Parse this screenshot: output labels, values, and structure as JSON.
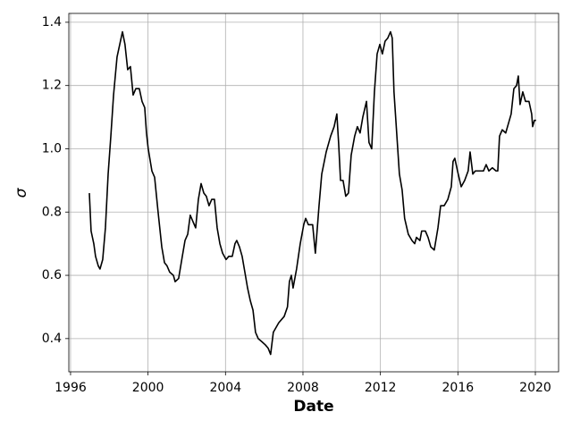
{
  "chart_data": {
    "type": "line",
    "x_label": "Date",
    "y_label": "σ",
    "color": "#000000",
    "grid": true,
    "x": [
      1996.97,
      1997.06,
      1997.2,
      1997.29,
      1997.43,
      1997.52,
      1997.66,
      1997.8,
      1997.94,
      1998.08,
      1998.22,
      1998.4,
      1998.54,
      1998.68,
      1998.81,
      1998.95,
      1999.09,
      1999.23,
      1999.37,
      1999.55,
      1999.69,
      1999.83,
      1999.92,
      2000.01,
      2000.2,
      2000.34,
      2000.52,
      2000.71,
      2000.85,
      2000.98,
      2001.12,
      2001.31,
      2001.4,
      2001.58,
      2001.77,
      2001.91,
      2002.05,
      2002.18,
      2002.32,
      2002.46,
      2002.6,
      2002.74,
      2002.88,
      2003.01,
      2003.15,
      2003.29,
      2003.43,
      2003.57,
      2003.71,
      2003.85,
      2004.03,
      2004.17,
      2004.35,
      2004.49,
      2004.58,
      2004.72,
      2004.86,
      2005.0,
      2005.14,
      2005.28,
      2005.42,
      2005.55,
      2005.69,
      2005.88,
      2006.06,
      2006.2,
      2006.33,
      2006.47,
      2006.75,
      2007.03,
      2007.2,
      2007.3,
      2007.4,
      2007.49,
      2007.67,
      2007.86,
      2008.04,
      2008.14,
      2008.28,
      2008.5,
      2008.64,
      2008.83,
      2008.97,
      2009.2,
      2009.43,
      2009.61,
      2009.75,
      2009.84,
      2009.94,
      2010.07,
      2010.21,
      2010.35,
      2010.49,
      2010.67,
      2010.81,
      2010.95,
      2011.09,
      2011.28,
      2011.41,
      2011.55,
      2011.69,
      2011.83,
      2011.97,
      2012.1,
      2012.24,
      2012.38,
      2012.52,
      2012.61,
      2012.7,
      2012.84,
      2012.98,
      2013.12,
      2013.25,
      2013.44,
      2013.63,
      2013.77,
      2013.86,
      2014.04,
      2014.13,
      2014.32,
      2014.46,
      2014.6,
      2014.78,
      2014.97,
      2015.11,
      2015.29,
      2015.48,
      2015.66,
      2015.75,
      2015.84,
      2015.98,
      2016.17,
      2016.35,
      2016.53,
      2016.63,
      2016.77,
      2016.9,
      2017.14,
      2017.32,
      2017.46,
      2017.6,
      2017.78,
      2017.97,
      2018.06,
      2018.15,
      2018.29,
      2018.47,
      2018.61,
      2018.75,
      2018.89,
      2019.03,
      2019.12,
      2019.21,
      2019.35,
      2019.49,
      2019.67,
      2019.81,
      2019.86,
      2019.95,
      2020.04
    ],
    "values": [
      0.86,
      0.74,
      0.7,
      0.66,
      0.63,
      0.62,
      0.65,
      0.75,
      0.92,
      1.04,
      1.17,
      1.29,
      1.33,
      1.37,
      1.33,
      1.25,
      1.26,
      1.17,
      1.19,
      1.19,
      1.15,
      1.13,
      1.05,
      1.0,
      0.93,
      0.91,
      0.8,
      0.69,
      0.64,
      0.63,
      0.61,
      0.6,
      0.58,
      0.59,
      0.66,
      0.71,
      0.73,
      0.79,
      0.77,
      0.75,
      0.84,
      0.89,
      0.86,
      0.85,
      0.82,
      0.84,
      0.84,
      0.75,
      0.7,
      0.67,
      0.65,
      0.66,
      0.66,
      0.7,
      0.71,
      0.69,
      0.66,
      0.61,
      0.56,
      0.52,
      0.49,
      0.42,
      0.4,
      0.39,
      0.38,
      0.37,
      0.35,
      0.42,
      0.45,
      0.47,
      0.5,
      0.58,
      0.6,
      0.56,
      0.62,
      0.7,
      0.76,
      0.78,
      0.76,
      0.76,
      0.67,
      0.82,
      0.92,
      0.99,
      1.04,
      1.07,
      1.11,
      1.02,
      0.9,
      0.9,
      0.85,
      0.86,
      0.98,
      1.04,
      1.07,
      1.05,
      1.1,
      1.15,
      1.02,
      1.0,
      1.18,
      1.3,
      1.33,
      1.3,
      1.34,
      1.35,
      1.37,
      1.35,
      1.18,
      1.05,
      0.92,
      0.87,
      0.78,
      0.73,
      0.71,
      0.7,
      0.72,
      0.71,
      0.74,
      0.74,
      0.72,
      0.69,
      0.68,
      0.75,
      0.82,
      0.82,
      0.84,
      0.88,
      0.96,
      0.97,
      0.93,
      0.88,
      0.9,
      0.93,
      0.99,
      0.92,
      0.93,
      0.93,
      0.93,
      0.95,
      0.93,
      0.94,
      0.93,
      0.93,
      1.04,
      1.06,
      1.05,
      1.08,
      1.11,
      1.19,
      1.2,
      1.23,
      1.14,
      1.18,
      1.15,
      1.15,
      1.11,
      1.07,
      1.09,
      1.09
    ],
    "xlim": [
      1995.91,
      2021.2
    ],
    "xticks": [
      1996,
      2000,
      2004,
      2008,
      2012,
      2016,
      2020
    ],
    "ylim": [
      0.295,
      1.428
    ],
    "yticks": [
      0.4,
      0.6,
      0.8,
      {
        "value": 1.0,
        "label": "1.0"
      },
      1.2,
      1.4
    ]
  }
}
